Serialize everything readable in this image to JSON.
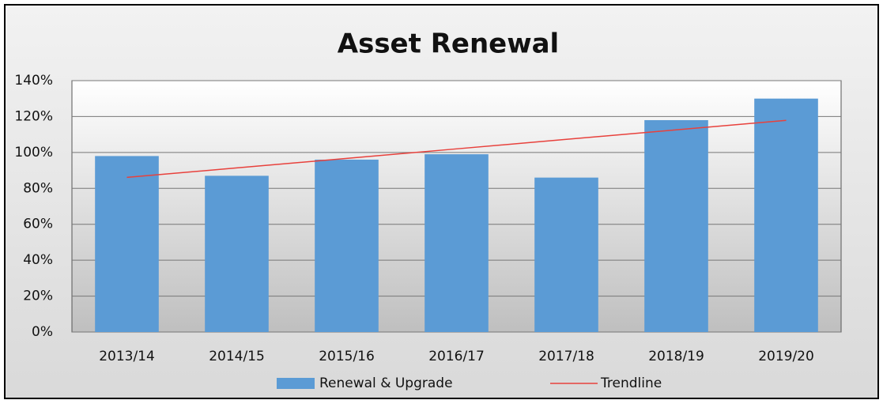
{
  "chart_data": {
    "type": "bar",
    "title": "Asset Renewal",
    "categories": [
      "2013/14",
      "2014/15",
      "2015/16",
      "2016/17",
      "2017/18",
      "2018/19",
      "2019/20"
    ],
    "series": [
      {
        "name": "Renewal & Upgrade",
        "type": "bar",
        "color": "#5b9bd5",
        "values": [
          98,
          87,
          96,
          99,
          86,
          118,
          130
        ]
      },
      {
        "name": "Trendline",
        "type": "line",
        "color": "#e8413c",
        "values": [
          86.1,
          91.4,
          96.7,
          102,
          107.3,
          112.6,
          117.9
        ]
      }
    ],
    "ylim": [
      0,
      140
    ],
    "yticks": [
      {
        "value": 0,
        "label": "0%"
      },
      {
        "value": 20,
        "label": "20%"
      },
      {
        "value": 40,
        "label": "40%"
      },
      {
        "value": 60,
        "label": "60%"
      },
      {
        "value": 80,
        "label": "80%"
      },
      {
        "value": 100,
        "label": "100%"
      },
      {
        "value": 120,
        "label": "120%"
      },
      {
        "value": 140,
        "label": "140%"
      }
    ],
    "grid": true,
    "legend": "bottom"
  }
}
